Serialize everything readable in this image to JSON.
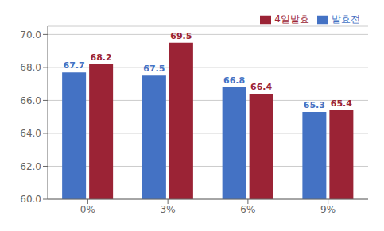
{
  "chart_data": {
    "type": "bar",
    "categories": [
      "0%",
      "3%",
      "6%",
      "9%"
    ],
    "series": [
      {
        "name": "발효전",
        "color": "#4472C4",
        "values": [
          67.7,
          67.5,
          66.8,
          65.3
        ]
      },
      {
        "name": "4일발효",
        "color": "#9B2335",
        "values": [
          68.2,
          69.5,
          66.4,
          65.4
        ]
      }
    ],
    "ylim": [
      60.0,
      70.5
    ],
    "yticks": [
      {
        "value": 60.0,
        "label": "60.0"
      },
      {
        "value": 62.0,
        "label": "62.0"
      },
      {
        "value": 64.0,
        "label": "64.0"
      },
      {
        "value": 66.0,
        "label": "66.0"
      },
      {
        "value": 68.0,
        "label": "68.0"
      },
      {
        "value": 70.0,
        "label": "70.0"
      }
    ],
    "grid": true,
    "legend": "upper right",
    "data_labels": true
  }
}
